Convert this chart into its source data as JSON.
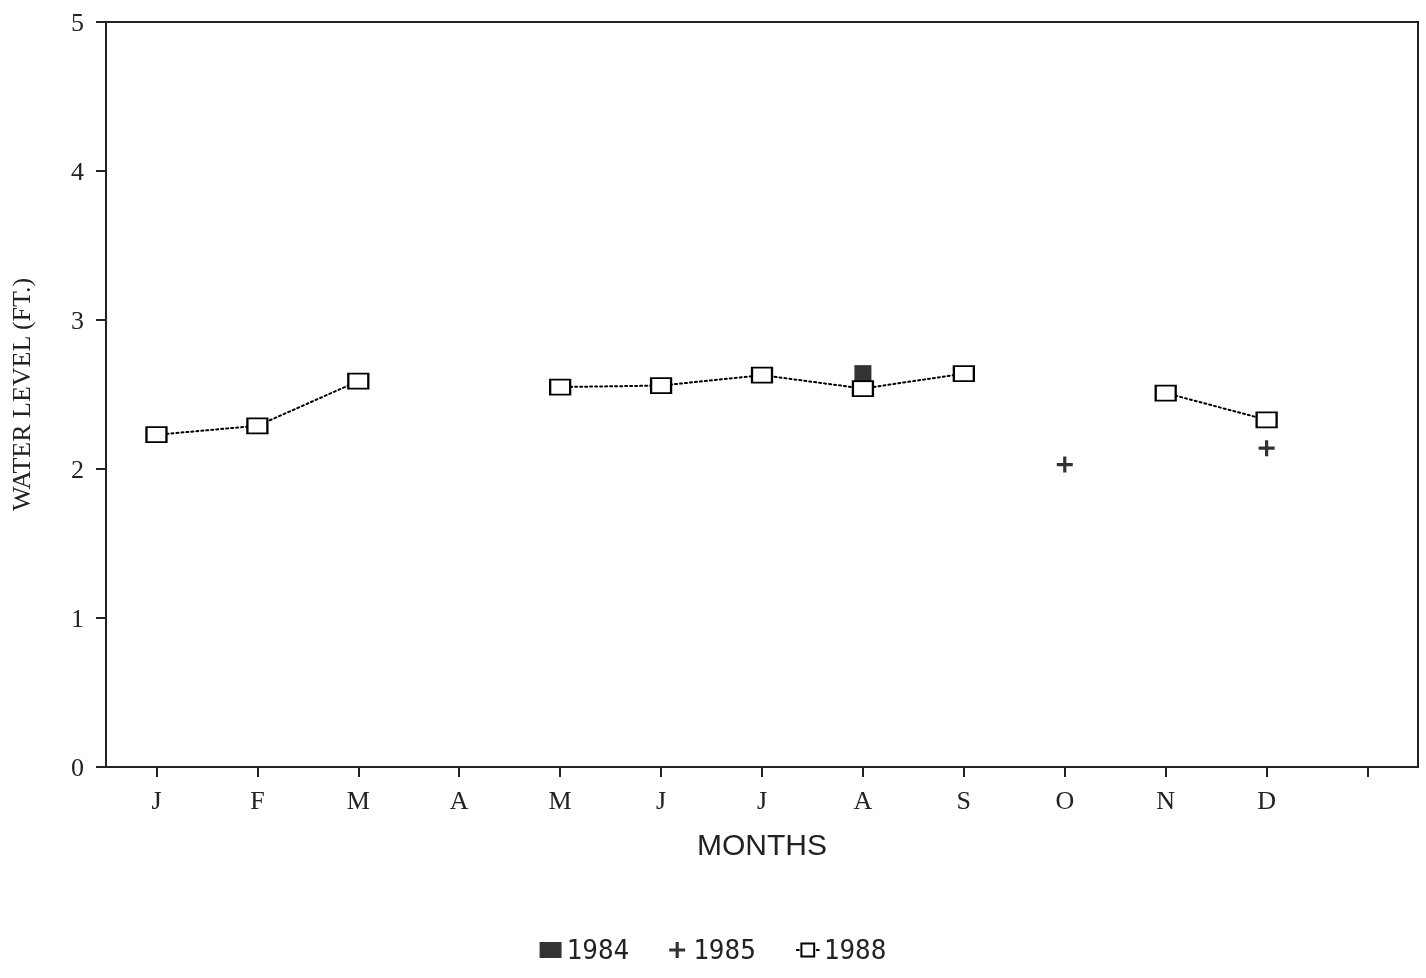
{
  "chart_data": {
    "type": "line",
    "xlabel": "MONTHS",
    "ylabel": "WATER LEVEL (FT.)",
    "categories": [
      "J",
      "F",
      "M",
      "A",
      "M",
      "J",
      "J",
      "A",
      "S",
      "O",
      "N",
      "D",
      null
    ],
    "series": [
      {
        "name": "1984",
        "type": "scatter",
        "marker": "square",
        "color": "#000000",
        "values": [
          null,
          null,
          null,
          null,
          null,
          null,
          null,
          2.64,
          null,
          null,
          null,
          null,
          null
        ]
      },
      {
        "name": "1985",
        "type": "scatter",
        "marker": "cross",
        "color": "#000000",
        "values": [
          null,
          null,
          null,
          null,
          null,
          null,
          null,
          null,
          null,
          2.03,
          null,
          2.14,
          null
        ]
      },
      {
        "name": "1988",
        "marker": "square",
        "line_style": "dotted",
        "color": "#000000",
        "values": [
          2.23,
          2.29,
          2.59,
          null,
          2.55,
          2.56,
          2.63,
          2.54,
          2.64,
          null,
          2.51,
          2.33,
          null
        ]
      }
    ],
    "ylim": [
      0,
      5
    ],
    "yticks": [
      0,
      1,
      2,
      3,
      4,
      5
    ],
    "grid": false,
    "legend": "bottom"
  }
}
